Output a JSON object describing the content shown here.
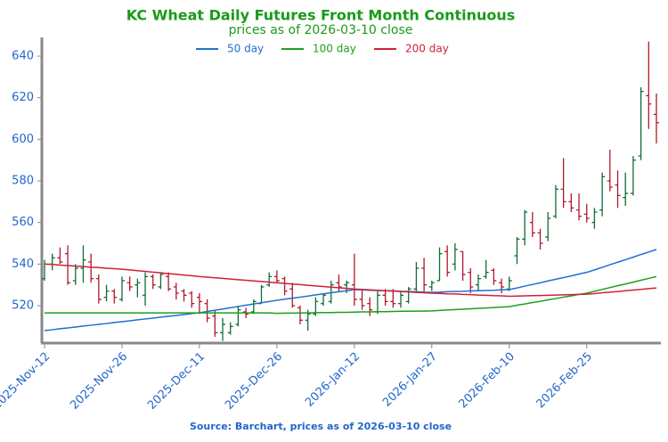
{
  "chart_data": {
    "type": "ohlc",
    "title": "KC Wheat Daily Futures Front Month Continuous",
    "subtitle": "prices as of 2026-03-10 close",
    "source": "Source: Barchart, prices as of 2026-03-10 close",
    "categories": [
      "2025-Nov-12",
      null,
      null,
      null,
      null,
      null,
      null,
      null,
      null,
      null,
      "2025-Nov-26",
      null,
      null,
      null,
      null,
      null,
      null,
      null,
      null,
      null,
      "2025-Dec-11",
      null,
      null,
      null,
      null,
      null,
      null,
      null,
      null,
      null,
      "2025-Dec-26",
      null,
      null,
      null,
      null,
      null,
      null,
      null,
      null,
      null,
      "2026-Jan-12",
      null,
      null,
      null,
      null,
      null,
      null,
      null,
      null,
      null,
      "2026-Jan-27",
      null,
      null,
      null,
      null,
      null,
      null,
      null,
      null,
      null,
      "2026-Feb-10",
      null,
      null,
      null,
      null,
      null,
      null,
      null,
      null,
      null,
      "2026-Feb-25",
      null,
      null,
      null,
      null,
      null,
      null,
      null,
      null,
      null
    ],
    "open": [
      533,
      540,
      543,
      545,
      532,
      538,
      541,
      533,
      524,
      527,
      523,
      531,
      530,
      525,
      534,
      529,
      534,
      529,
      527,
      526,
      524,
      521,
      515,
      507,
      507,
      511,
      517,
      517,
      521,
      530,
      534,
      533,
      528,
      519,
      513,
      516,
      521,
      522,
      531,
      530,
      530,
      523,
      521,
      517,
      525,
      522,
      521,
      522,
      528,
      538,
      529,
      532,
      546,
      540,
      546,
      536,
      530,
      534,
      537,
      531,
      528,
      544,
      552,
      560,
      555,
      553,
      563,
      576,
      570,
      566,
      564,
      560,
      566,
      580,
      578,
      572,
      574,
      592,
      621,
      612
    ],
    "high": [
      542,
      545,
      548,
      549,
      540,
      549,
      545,
      535,
      530,
      528,
      534,
      534,
      533,
      536,
      535,
      536,
      536,
      531,
      528,
      527,
      526,
      523,
      518,
      514,
      512,
      520,
      519,
      523,
      530,
      536,
      537,
      534,
      531,
      520,
      518,
      524,
      526,
      532,
      535,
      532,
      545,
      528,
      524,
      527,
      528,
      528,
      527,
      529,
      541,
      543,
      532,
      548,
      549,
      550,
      546,
      538,
      535,
      542,
      538,
      533,
      534,
      553,
      566,
      565,
      557,
      565,
      578,
      591,
      574,
      574,
      569,
      567,
      584,
      595,
      585,
      584,
      592,
      625,
      647,
      622
    ],
    "low": [
      532,
      537,
      540,
      530,
      530,
      531,
      531,
      521,
      522,
      521,
      522,
      527,
      524,
      520,
      528,
      528,
      527,
      523,
      522,
      519,
      516,
      512,
      505,
      503,
      506,
      510,
      514,
      516,
      521,
      529,
      531,
      525,
      519,
      511,
      508,
      515,
      520,
      521,
      527,
      526,
      520,
      518,
      515,
      516,
      520,
      519,
      519,
      521,
      526,
      526,
      527,
      532,
      534,
      537,
      532,
      526,
      527,
      533,
      530,
      526,
      527,
      540,
      549,
      553,
      547,
      551,
      562,
      567,
      565,
      561,
      560,
      557,
      563,
      575,
      567,
      568,
      573,
      590,
      605,
      598
    ],
    "close": [
      540,
      543,
      541,
      531,
      538,
      542,
      533,
      523,
      527,
      524,
      532,
      529,
      531,
      534,
      530,
      535,
      528,
      526,
      525,
      521,
      522,
      514,
      507,
      511,
      510,
      518,
      516,
      522,
      529,
      534,
      532,
      527,
      520,
      513,
      516,
      522,
      525,
      530,
      529,
      531,
      523,
      520,
      518,
      525,
      522,
      521,
      525,
      528,
      538,
      530,
      531,
      545,
      536,
      547,
      535,
      529,
      533,
      536,
      532,
      529,
      532,
      552,
      565,
      555,
      550,
      562,
      576,
      570,
      567,
      563,
      562,
      565,
      582,
      577,
      573,
      574,
      590,
      623,
      617,
      608
    ],
    "up_color": "#136b35",
    "down_color": "#b0182c",
    "series": [
      {
        "name": "50 day",
        "color": "#1f6fd0",
        "values": [
          508,
          508.4,
          508.9,
          509.3,
          509.7,
          510.2,
          510.6,
          511,
          511.4,
          511.9,
          512.3,
          512.7,
          513.2,
          513.6,
          514,
          514.5,
          514.9,
          515.3,
          515.7,
          516.2,
          516.6,
          517.2,
          517.8,
          518.4,
          519,
          519.6,
          520.2,
          520.8,
          521.4,
          522,
          522.6,
          523.1,
          523.6,
          524.1,
          524.6,
          525.2,
          525.7,
          526.2,
          526.7,
          527.2,
          527.7,
          527.6,
          527.4,
          527.3,
          527.2,
          527.1,
          526.9,
          526.8,
          526.7,
          526.5,
          526.4,
          526.5,
          526.7,
          526.8,
          526.9,
          527.1,
          527.2,
          527.3,
          527.4,
          527.6,
          527.7,
          528.5,
          529.4,
          530.2,
          531,
          531.9,
          532.7,
          533.5,
          534.3,
          535.2,
          536,
          537.2,
          538.4,
          539.7,
          540.9,
          542.1,
          543.3,
          544.6,
          545.8,
          547
        ]
      },
      {
        "name": "100 day",
        "color": "#1e9e1e",
        "values": [
          516.5,
          516.5,
          516.5,
          516.5,
          516.5,
          516.5,
          516.5,
          516.5,
          516.5,
          516.5,
          516.5,
          516.5,
          516.5,
          516.5,
          516.5,
          516.5,
          516.5,
          516.5,
          516.5,
          516.5,
          516.5,
          516.5,
          516.5,
          516.5,
          516.5,
          516.5,
          516.5,
          516.5,
          516.5,
          516.5,
          516.3,
          516.4,
          516.4,
          516.5,
          516.5,
          516.6,
          516.7,
          516.7,
          516.8,
          516.8,
          516.9,
          517,
          517,
          517.1,
          517.1,
          517.2,
          517.3,
          517.3,
          517.4,
          517.4,
          517.5,
          517.7,
          517.9,
          518.1,
          518.3,
          518.5,
          518.7,
          518.9,
          519.1,
          519.3,
          519.5,
          520.2,
          520.8,
          521.5,
          522.1,
          522.8,
          523.4,
          524.1,
          524.7,
          525.4,
          526,
          526.9,
          527.8,
          528.7,
          529.6,
          530.4,
          531.3,
          532.2,
          533.1,
          534
        ]
      },
      {
        "name": "200 day",
        "color": "#d0203c",
        "values": [
          540,
          539.8,
          539.5,
          539.3,
          539,
          538.8,
          538.5,
          538.3,
          538,
          537.8,
          537.5,
          537.2,
          536.8,
          536.5,
          536.1,
          535.8,
          535.4,
          535.1,
          534.7,
          534.4,
          534,
          533.7,
          533.4,
          533.1,
          532.8,
          532.5,
          532.2,
          531.9,
          531.6,
          531.3,
          531,
          530.7,
          530.4,
          530.1,
          529.8,
          529.5,
          529.2,
          528.9,
          528.6,
          528.3,
          528,
          527.8,
          527.6,
          527.4,
          527.2,
          527,
          526.8,
          526.6,
          526.4,
          526.2,
          526,
          525.9,
          525.7,
          525.6,
          525.4,
          525.3,
          525.1,
          525,
          524.8,
          524.7,
          524.5,
          524.6,
          524.7,
          524.8,
          524.9,
          525,
          525.1,
          525.2,
          525.3,
          525.4,
          525.5,
          525.8,
          526.2,
          526.5,
          526.8,
          527.2,
          527.5,
          527.8,
          528.2,
          528.5
        ]
      }
    ],
    "ylim": [
      502,
      649
    ],
    "yticks": [
      520,
      540,
      560,
      580,
      600,
      620,
      640
    ]
  }
}
